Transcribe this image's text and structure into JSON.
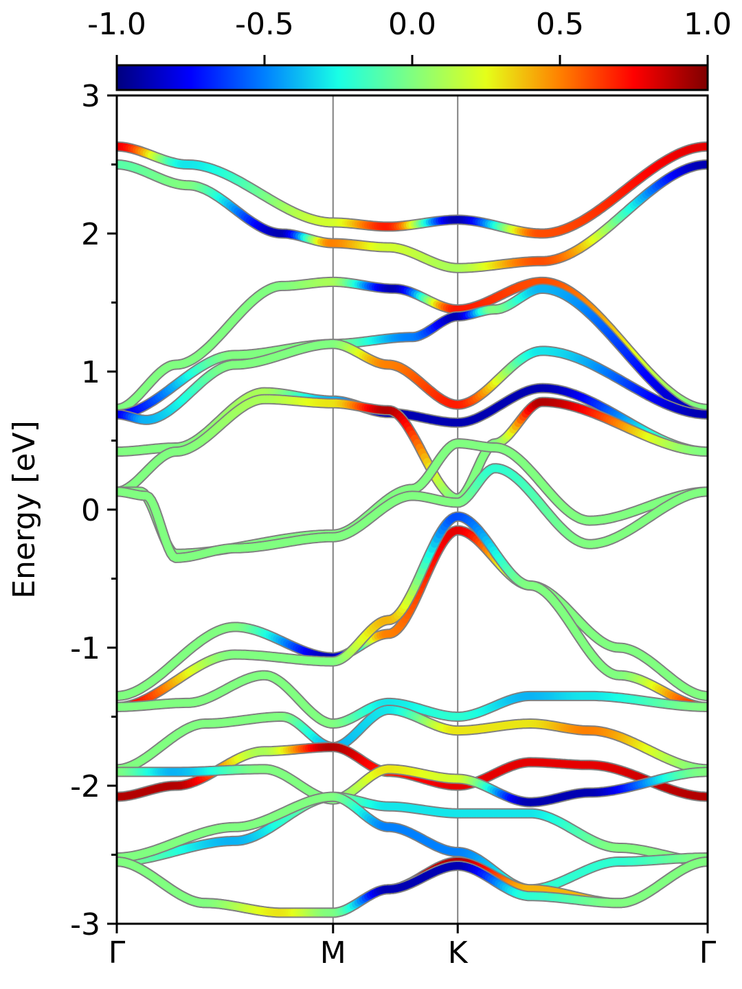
{
  "chart_data": {
    "type": "line",
    "title": "",
    "xlabel": "",
    "ylabel": "Energy [eV]",
    "ylim": [
      -3,
      3
    ],
    "yticks": [
      "3",
      "2",
      "1",
      "0",
      "-1",
      "-2",
      "-3"
    ],
    "high_symmetry_points": [
      {
        "label": "Γ",
        "k": 0.0
      },
      {
        "label": "M",
        "k": 0.366
      },
      {
        "label": "K",
        "k": 0.577
      },
      {
        "label": "Γ",
        "k": 1.0
      }
    ],
    "vertical_lines_at": [
      0.366,
      0.577
    ],
    "colorbar": {
      "colormap": "jet",
      "range": [
        -1.0,
        1.0
      ],
      "ticks": [
        "-1.0",
        "-0.5",
        "0.0",
        "0.5",
        "1.0"
      ],
      "stops": [
        "#00007f",
        "#0000ff",
        "#0080ff",
        "#19ffe5",
        "#80ff80",
        "#e5ff19",
        "#ff8000",
        "#ff0000",
        "#7f0000"
      ]
    },
    "series": [
      {
        "k": [
          0,
          0.12,
          0.366,
          0.46,
          0.577,
          0.72,
          1.0
        ],
        "E": [
          2.63,
          2.5,
          2.08,
          2.05,
          2.1,
          2.0,
          2.63
        ],
        "c": [
          0.8,
          -0.3,
          0.2,
          0.7,
          -0.9,
          0.6,
          0.8
        ]
      },
      {
        "k": [
          0,
          0.12,
          0.28,
          0.366,
          0.46,
          0.577,
          0.72,
          1.0
        ],
        "E": [
          2.5,
          2.35,
          2.0,
          1.93,
          1.9,
          1.75,
          1.8,
          2.5
        ],
        "c": [
          -0.1,
          0.0,
          -0.9,
          0.5,
          0.2,
          0.1,
          0.6,
          -0.9
        ]
      },
      {
        "k": [
          0,
          0.1,
          0.28,
          0.366,
          0.47,
          0.577,
          0.72,
          1.0
        ],
        "E": [
          0.73,
          1.05,
          1.62,
          1.65,
          1.6,
          1.45,
          1.65,
          0.73
        ],
        "c": [
          0.0,
          0.0,
          0.0,
          0.1,
          -0.9,
          0.7,
          0.6,
          0.0
        ]
      },
      {
        "k": [
          0,
          0.2,
          0.366,
          0.5,
          0.577,
          0.64,
          0.72,
          1.0
        ],
        "E": [
          0.69,
          1.12,
          1.2,
          1.25,
          1.4,
          1.45,
          1.6,
          0.69
        ],
        "c": [
          -0.8,
          0.0,
          0.0,
          -0.5,
          -0.9,
          0.0,
          -0.4,
          -0.9
        ]
      },
      {
        "k": [
          0,
          0.05,
          0.2,
          0.366,
          0.46,
          0.577,
          0.72,
          1.0
        ],
        "E": [
          0.69,
          0.65,
          1.05,
          1.2,
          1.05,
          0.76,
          1.15,
          0.69
        ],
        "c": [
          -0.8,
          -0.4,
          0.0,
          0.0,
          0.5,
          0.7,
          -0.3,
          -0.9
        ]
      },
      {
        "k": [
          0,
          0.1,
          0.25,
          0.366,
          0.46,
          0.577,
          0.72,
          1.0
        ],
        "E": [
          0.42,
          0.45,
          0.85,
          0.79,
          0.7,
          0.63,
          0.88,
          0.42
        ],
        "c": [
          0.0,
          0.0,
          0.1,
          -0.4,
          -0.9,
          -0.9,
          -0.9,
          0.0
        ]
      },
      {
        "k": [
          0,
          0.1,
          0.25,
          0.366,
          0.46,
          0.577,
          0.64,
          0.72,
          1.0
        ],
        "E": [
          0.13,
          0.42,
          0.8,
          0.77,
          0.72,
          0.08,
          0.48,
          0.78,
          0.42
        ],
        "c": [
          0.0,
          0.0,
          0.1,
          0.3,
          0.9,
          0.0,
          0.0,
          0.9,
          0.0
        ]
      },
      {
        "k": [
          0,
          0.04,
          0.1,
          0.366,
          0.5,
          0.577,
          0.64,
          0.8,
          1.0
        ],
        "E": [
          0.13,
          0.13,
          -0.32,
          -0.18,
          0.15,
          0.48,
          0.45,
          -0.08,
          0.13
        ],
        "c": [
          0.0,
          0.0,
          0.0,
          0.0,
          0.0,
          0.0,
          0.0,
          0.0,
          0.0
        ]
      },
      {
        "k": [
          0,
          0.05,
          0.1,
          0.2,
          0.366,
          0.5,
          0.577,
          0.64,
          0.8,
          1.0
        ],
        "E": [
          0.13,
          0.1,
          -0.35,
          -0.28,
          -0.2,
          0.1,
          0.05,
          0.3,
          -0.25,
          0.13
        ],
        "c": [
          0.0,
          0.0,
          0.0,
          0.0,
          0.0,
          0.0,
          0.0,
          -0.2,
          0.0,
          0.0
        ]
      },
      {
        "k": [
          0,
          0.2,
          0.366,
          0.46,
          0.577,
          0.7,
          0.85,
          1.0
        ],
        "E": [
          -1.35,
          -0.85,
          -1.07,
          -0.9,
          -0.15,
          -0.55,
          -1.0,
          -1.35
        ],
        "c": [
          0.0,
          0.0,
          -0.9,
          0.5,
          0.8,
          0.0,
          0.0,
          0.0
        ]
      },
      {
        "k": [
          0,
          0.2,
          0.366,
          0.46,
          0.577,
          0.7,
          0.85,
          1.0
        ],
        "E": [
          -1.43,
          -1.05,
          -1.1,
          -0.8,
          -0.05,
          -0.55,
          -1.2,
          -1.43
        ],
        "c": [
          0.8,
          0.0,
          0.0,
          0.4,
          -0.6,
          0.0,
          0.0,
          0.7
        ]
      },
      {
        "k": [
          0,
          0.12,
          0.25,
          0.366,
          0.46,
          0.577,
          0.7,
          0.8,
          1.0
        ],
        "E": [
          -1.43,
          -1.4,
          -1.2,
          -1.55,
          -1.4,
          -1.5,
          -1.35,
          -1.35,
          -1.43
        ],
        "c": [
          0.0,
          0.0,
          0.0,
          0.0,
          -0.3,
          -0.2,
          -0.4,
          -0.3,
          0.0
        ]
      },
      {
        "k": [
          0,
          0.15,
          0.28,
          0.366,
          0.46,
          0.577,
          0.7,
          0.8,
          1.0
        ],
        "E": [
          -1.88,
          -1.55,
          -1.5,
          -1.72,
          -1.45,
          -1.6,
          -1.55,
          -1.6,
          -1.88
        ],
        "c": [
          0.0,
          0.0,
          0.0,
          -0.4,
          -0.3,
          0.3,
          0.3,
          0.5,
          0.0
        ]
      },
      {
        "k": [
          0,
          0.1,
          0.25,
          0.366,
          0.46,
          0.577,
          0.7,
          0.8,
          1.0
        ],
        "E": [
          -2.08,
          -2.0,
          -1.75,
          -1.72,
          -1.9,
          -2.0,
          -1.83,
          -1.85,
          -2.08
        ],
        "c": [
          0.9,
          0.9,
          0.1,
          0.9,
          0.7,
          0.8,
          0.8,
          0.8,
          0.9
        ]
      },
      {
        "k": [
          0,
          0.1,
          0.25,
          0.366,
          0.46,
          0.577,
          0.7,
          0.8,
          1.0
        ],
        "E": [
          -1.9,
          -1.9,
          -1.88,
          -2.1,
          -1.88,
          -1.95,
          -2.12,
          -2.05,
          -1.9
        ],
        "c": [
          0.0,
          -0.4,
          0.0,
          0.0,
          0.3,
          0.2,
          -0.9,
          -0.9,
          0.0
        ]
      },
      {
        "k": [
          0,
          0.2,
          0.366,
          0.46,
          0.577,
          0.7,
          0.85,
          1.0
        ],
        "E": [
          -2.55,
          -2.4,
          -2.08,
          -2.15,
          -2.2,
          -2.2,
          -2.45,
          -2.55
        ],
        "c": [
          0.0,
          -0.4,
          0.0,
          -0.3,
          -0.3,
          -0.3,
          0.0,
          0.0
        ]
      },
      {
        "k": [
          0,
          0.2,
          0.366,
          0.46,
          0.577,
          0.7,
          0.85,
          1.0
        ],
        "E": [
          -2.52,
          -2.3,
          -2.08,
          -2.3,
          -2.48,
          -2.75,
          -2.55,
          -2.52
        ],
        "c": [
          0.0,
          0.0,
          0.0,
          -0.5,
          -0.5,
          -0.2,
          -0.2,
          0.0
        ]
      },
      {
        "k": [
          0,
          0.15,
          0.28,
          0.366,
          0.46,
          0.577,
          0.7,
          0.85,
          1.0
        ],
        "E": [
          -2.55,
          -2.85,
          -2.92,
          -2.92,
          -2.75,
          -2.55,
          -2.75,
          -2.85,
          -2.55
        ],
        "c": [
          0.0,
          0.0,
          0.3,
          0.3,
          0.8,
          0.9,
          0.4,
          0.4,
          0.0
        ]
      },
      {
        "k": [
          0,
          0.15,
          0.28,
          0.366,
          0.46,
          0.577,
          0.7,
          0.85,
          1.0
        ],
        "E": [
          -2.55,
          -2.85,
          -2.92,
          -2.92,
          -2.75,
          -2.58,
          -2.8,
          -2.85,
          -2.55
        ],
        "c": [
          0.0,
          0.0,
          0.3,
          0.0,
          -0.9,
          -0.9,
          -0.2,
          0.0,
          0.0
        ]
      }
    ]
  }
}
